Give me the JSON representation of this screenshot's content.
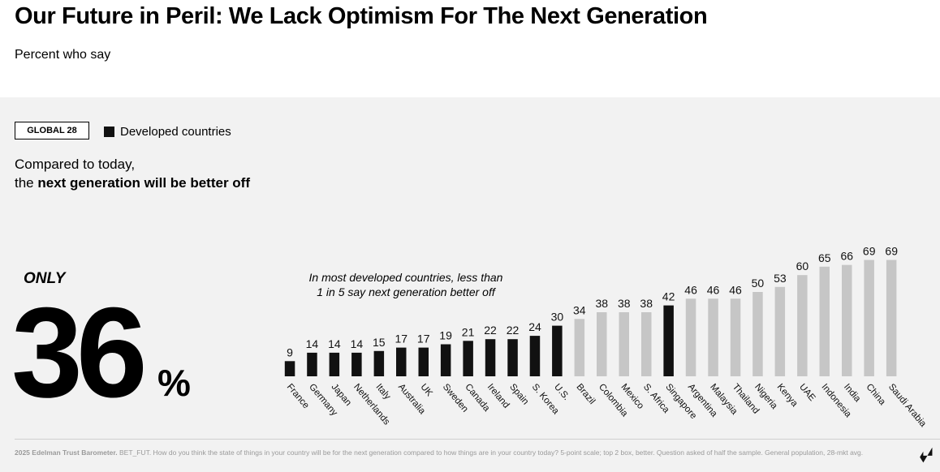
{
  "header": {
    "title": "Our Future in Peril: We Lack Optimism For The Next Generation",
    "subtitle": "Percent who say"
  },
  "legend": {
    "badge": "GLOBAL 28",
    "developed_label": "Developed countries"
  },
  "question": {
    "line1": "Compared to today,",
    "line2_prefix": "the ",
    "line2_bold": "next generation will be better off"
  },
  "headline": {
    "only": "ONLY",
    "value": "36",
    "unit": "%"
  },
  "annotation": {
    "line1": "In most developed countries, less than",
    "line2": "1 in 5 say next generation better off"
  },
  "footnote": {
    "source": "2025 Edelman Trust Barometer.",
    "text": " BET_FUT. How do you think the state of things in your country will be for the next generation compared to how things are in your country today? 5-point scale; top 2 box, better. Question asked of half the sample. General population, 28-mkt avg."
  },
  "colors": {
    "developed": "#111111",
    "other": "#c6c6c6",
    "panel": "#f2f2f2"
  },
  "chart_data": {
    "type": "bar",
    "categories": [
      "France",
      "Germany",
      "Japan",
      "Netherlands",
      "Italy",
      "Australia",
      "UK",
      "Sweden",
      "Canada",
      "Ireland",
      "Spain",
      "S. Korea",
      "U.S.",
      "Brazil",
      "Colombia",
      "Mexico",
      "S. Africa",
      "Singapore",
      "Argentina",
      "Malaysia",
      "Thailand",
      "Nigeria",
      "Kenya",
      "UAE",
      "Indonesia",
      "India",
      "China",
      "Saudi Arabia"
    ],
    "values": [
      9,
      14,
      14,
      14,
      15,
      17,
      17,
      19,
      21,
      22,
      22,
      24,
      30,
      34,
      38,
      38,
      38,
      42,
      46,
      46,
      46,
      50,
      53,
      60,
      65,
      66,
      69,
      69
    ],
    "developed": [
      true,
      true,
      true,
      true,
      true,
      true,
      true,
      true,
      true,
      true,
      true,
      true,
      true,
      false,
      false,
      false,
      false,
      true,
      false,
      false,
      false,
      false,
      false,
      false,
      false,
      false,
      false,
      false
    ],
    "ylim": [
      0,
      100
    ],
    "grid": false,
    "legend": "top-left"
  }
}
